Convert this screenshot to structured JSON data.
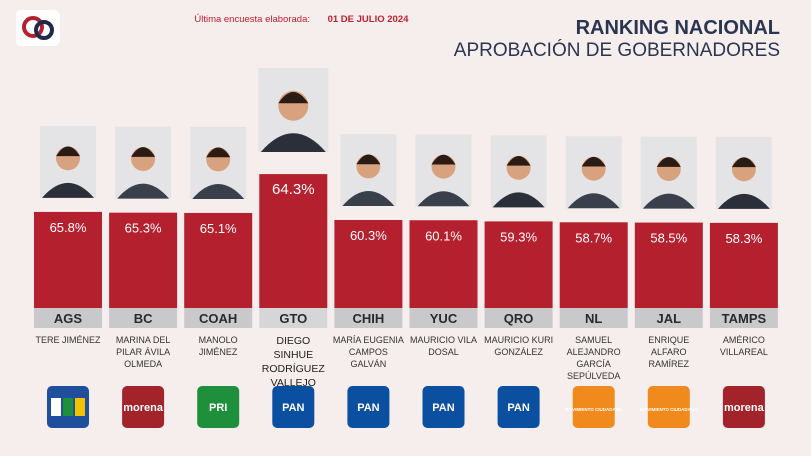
{
  "chart_data": {
    "type": "bar",
    "title": "RANKING NACIONAL",
    "subtitle": "APROBACIÓN DE GOBERNADORES",
    "survey_label": "Última encuesta elaborada:",
    "survey_date": "01 DE JULIO 2024",
    "categories": [
      "AGS",
      "BC",
      "COAH",
      "GTO",
      "CHIH",
      "YUC",
      "QRO",
      "NL",
      "JAL",
      "TAMPS"
    ],
    "values": [
      65.8,
      65.3,
      65.1,
      64.3,
      60.3,
      60.1,
      59.3,
      58.7,
      58.5,
      58.3
    ],
    "value_labels": [
      "65.8%",
      "65.3%",
      "65.1%",
      "64.3%",
      "60.3%",
      "60.1%",
      "59.3%",
      "58.7%",
      "58.5%",
      "58.3%"
    ],
    "names": [
      "TERE JIMÉNEZ",
      "MARINA DEL PILAR ÁVILA OLMEDA",
      "MANOLO JIMÉNEZ",
      "DIEGO SINHUE RODRÍGUEZ VALLEJO",
      "MARÍA EUGENIA CAMPOS GALVÁN",
      "MAURICIO VILA DOSAL",
      "MAURICIO KURI GONZÁLEZ",
      "SAMUEL ALEJANDRO GARCÍA SEPÚLVEDA",
      "ENRIQUE ALFARO RAMÍREZ",
      "AMÉRICO VILLAREAL"
    ],
    "parties": [
      null,
      "morena",
      "PRI",
      "PAN",
      "PAN",
      "PAN",
      "PAN",
      "MOVIMIENTO CIUDADANO",
      "MOVIMIENTO CIUDADANO",
      "morena"
    ],
    "party_colors": [
      "#1f4e9c",
      "#a3232b",
      "#1e8f3a",
      "#0a4fa0",
      "#0a4fa0",
      "#0a4fa0",
      "#0a4fa0",
      "#f08a1c",
      "#f08a1c",
      "#a3232b"
    ],
    "color": "#b5202e",
    "highlight": 3
  }
}
